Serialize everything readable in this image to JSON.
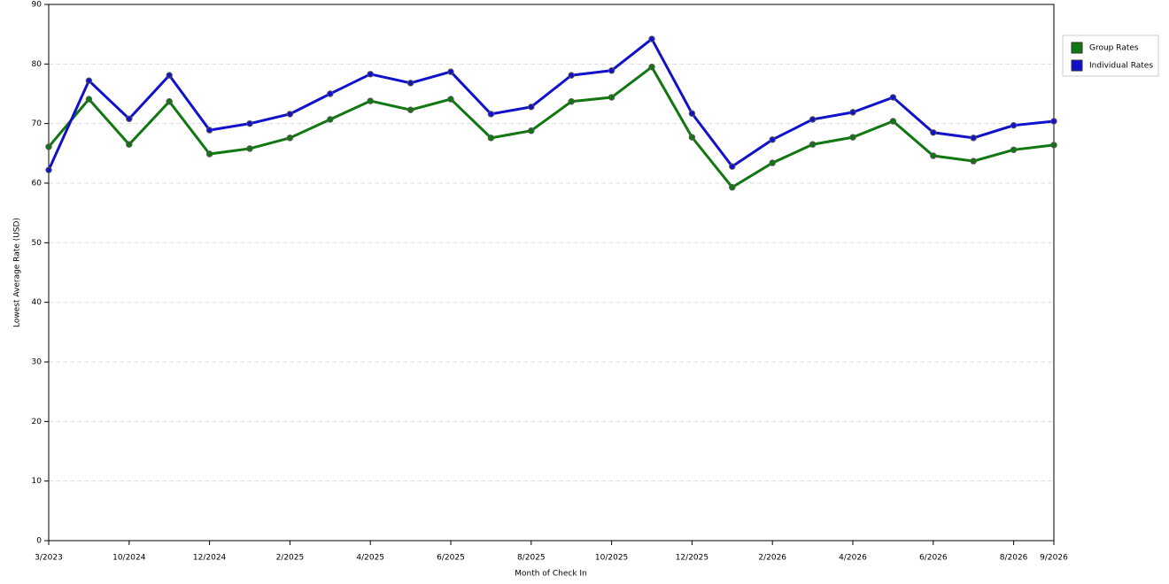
{
  "chart_data": {
    "type": "line",
    "y_label": "Lowest Average Rate (USD)",
    "x_label": "Month of Check In",
    "categories": [
      "3/2023",
      null,
      "10/2024",
      null,
      "12/2024",
      null,
      "2/2025",
      null,
      "4/2025",
      null,
      "6/2025",
      null,
      "8/2025",
      null,
      "10/2025",
      null,
      "12/2025",
      null,
      "2/2026",
      null,
      "4/2026",
      null,
      "6/2026",
      null,
      "8/2026",
      "9/2026"
    ],
    "series": [
      {
        "name": "Group Rates",
        "color": "#117711",
        "values": [
          66.1,
          74.1,
          66.5,
          73.7,
          64.9,
          65.8,
          67.6,
          70.7,
          73.8,
          72.3,
          74.1,
          67.6,
          68.8,
          73.7,
          74.4,
          79.5,
          67.7,
          59.3,
          63.4,
          66.5,
          67.7,
          70.4,
          64.6,
          63.7,
          65.6,
          66.4
        ]
      },
      {
        "name": "Individual Rates",
        "color": "#1111cc",
        "values": [
          62.2,
          77.2,
          70.8,
          78.1,
          68.9,
          70.0,
          71.6,
          75.0,
          78.3,
          76.8,
          78.7,
          71.6,
          72.8,
          78.1,
          78.9,
          84.2,
          71.7,
          62.8,
          67.3,
          70.7,
          71.9,
          74.4,
          68.5,
          67.6,
          69.7,
          70.4
        ]
      }
    ],
    "ylim": [
      0,
      90
    ],
    "yticks": [
      0,
      10,
      20,
      30,
      40,
      50,
      60,
      70,
      80,
      90
    ],
    "grid": true,
    "legend": "right"
  }
}
